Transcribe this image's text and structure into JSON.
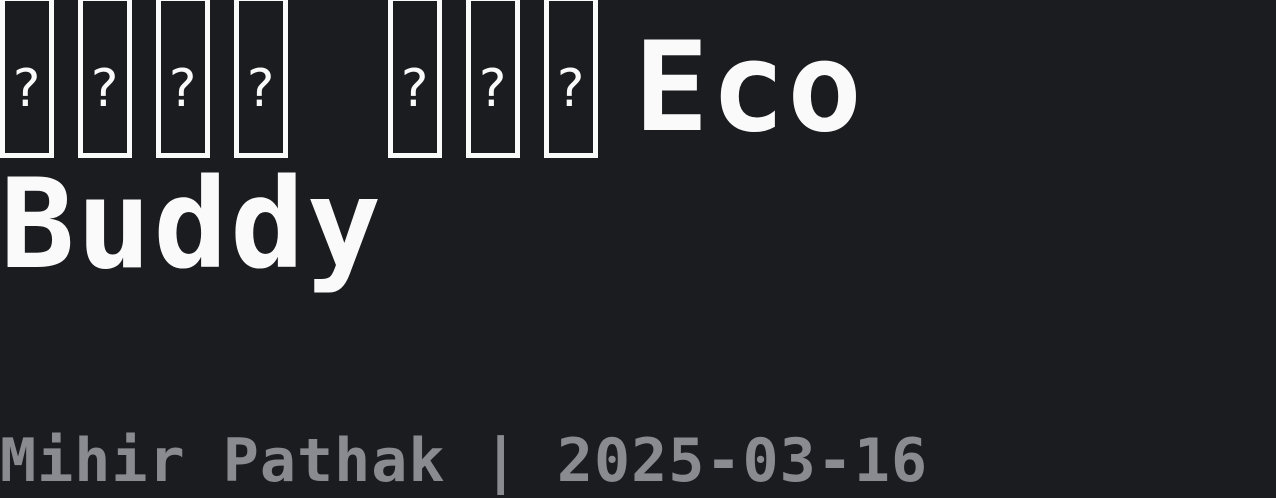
{
  "title": {
    "unrendered_glyph_groups": [
      4,
      3
    ],
    "unrendered_glyph_mark": "?",
    "word_1": "Eco",
    "word_2": "Buddy"
  },
  "meta": {
    "author": "Mihir Pathak",
    "separator": "|",
    "date": "2025-03-16"
  },
  "colors": {
    "background": "#1b1c20",
    "title_text": "#fafafa",
    "meta_text": "#8a8b90"
  }
}
